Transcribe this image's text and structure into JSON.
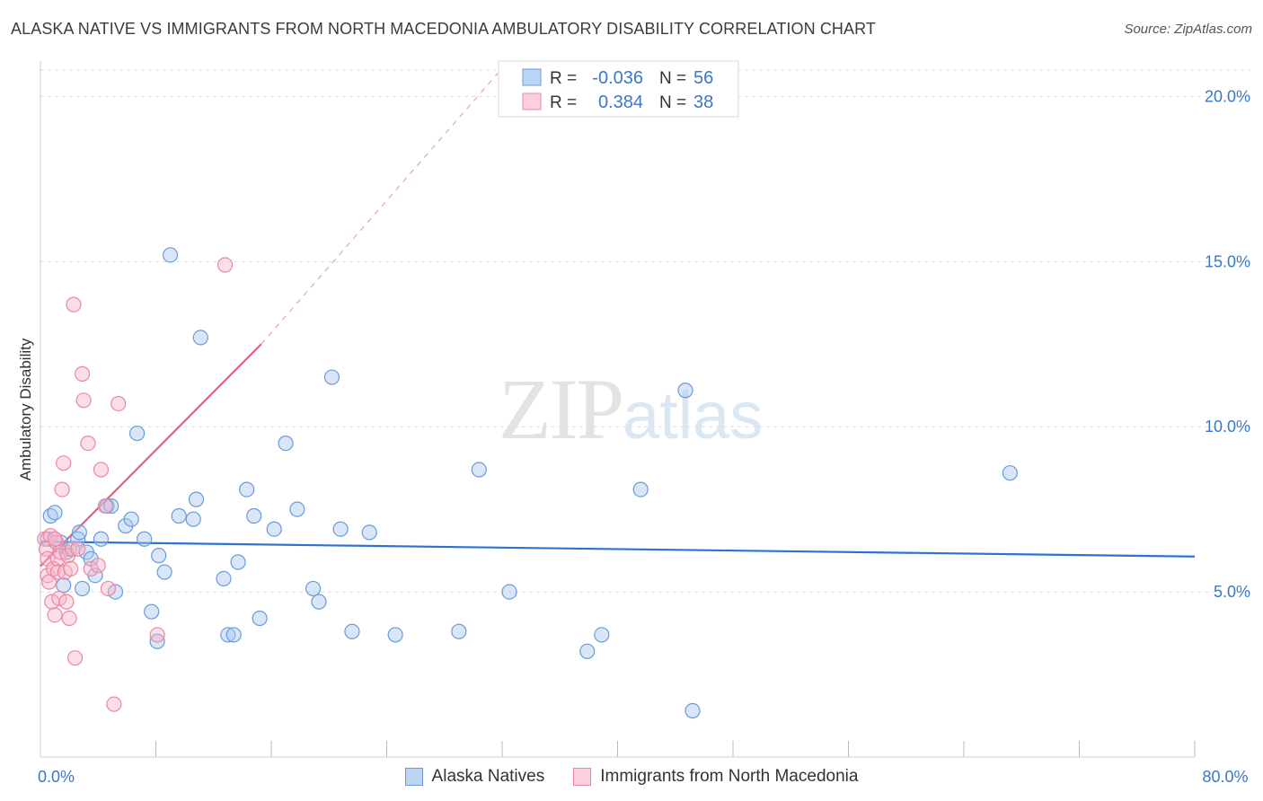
{
  "header": {
    "title": "ALASKA NATIVE VS IMMIGRANTS FROM NORTH MACEDONIA AMBULATORY DISABILITY CORRELATION CHART",
    "source": "Source: ZipAtlas.com"
  },
  "watermark": {
    "zip": "ZIP",
    "atlas": "atlas"
  },
  "legend": {
    "rows": [
      {
        "r_label": "R = ",
        "r_value": "-0.036",
        "n_label": "N = ",
        "n_value": "56"
      },
      {
        "r_label": "R = ",
        "r_value": " 0.384",
        "n_label": "N = ",
        "n_value": "38"
      }
    ]
  },
  "colors": {
    "blue_fill": "#a9c8f0",
    "blue_stroke": "#6a9ad8",
    "blue_line": "#2d72d2",
    "pink_fill": "#f7b6c8",
    "pink_stroke": "#e888a6",
    "pink_line": "#e0608a",
    "axis_text": "#3a78c9",
    "grid": "#dedede"
  },
  "chart_data": {
    "type": "scatter",
    "title": "ALASKA NATIVE VS IMMIGRANTS FROM NORTH MACEDONIA AMBULATORY DISABILITY CORRELATION CHART",
    "xlabel": "",
    "ylabel": "Ambulatory Disability",
    "xlim": [
      0,
      80
    ],
    "ylim": [
      0,
      20.8
    ],
    "x_tick_labels": [
      {
        "value": 0,
        "label": "0.0%"
      },
      {
        "value": 80,
        "label": "80.0%"
      }
    ],
    "x_minor_ticks": [
      8,
      16,
      24,
      32,
      40,
      48,
      56,
      64,
      72,
      80
    ],
    "y_ticks": [
      {
        "value": 5,
        "label": "5.0%"
      },
      {
        "value": 10,
        "label": "10.0%"
      },
      {
        "value": 15,
        "label": "15.0%"
      },
      {
        "value": 20,
        "label": "20.0%"
      }
    ],
    "series": [
      {
        "name": "Alaska Natives",
        "color_key": "blue",
        "points": [
          [
            0.5,
            6.6
          ],
          [
            0.7,
            7.3
          ],
          [
            1.0,
            7.4
          ],
          [
            1.4,
            6.5
          ],
          [
            1.8,
            6.2
          ],
          [
            1.6,
            5.2
          ],
          [
            2.0,
            6.3
          ],
          [
            2.6,
            6.6
          ],
          [
            2.7,
            6.8
          ],
          [
            2.9,
            5.1
          ],
          [
            3.2,
            6.2
          ],
          [
            3.5,
            6.0
          ],
          [
            3.8,
            5.5
          ],
          [
            4.2,
            6.6
          ],
          [
            4.6,
            7.6
          ],
          [
            4.9,
            7.6
          ],
          [
            5.2,
            5.0
          ],
          [
            5.9,
            7.0
          ],
          [
            6.3,
            7.2
          ],
          [
            6.7,
            9.8
          ],
          [
            7.2,
            6.6
          ],
          [
            7.7,
            4.4
          ],
          [
            8.1,
            3.5
          ],
          [
            8.2,
            6.1
          ],
          [
            8.6,
            5.6
          ],
          [
            9.0,
            15.2
          ],
          [
            9.6,
            7.3
          ],
          [
            10.6,
            7.2
          ],
          [
            10.8,
            7.8
          ],
          [
            11.1,
            12.7
          ],
          [
            12.7,
            5.4
          ],
          [
            13.0,
            3.7
          ],
          [
            13.4,
            3.7
          ],
          [
            13.7,
            5.9
          ],
          [
            14.3,
            8.1
          ],
          [
            14.8,
            7.3
          ],
          [
            15.2,
            4.2
          ],
          [
            16.2,
            6.9
          ],
          [
            17.0,
            9.5
          ],
          [
            17.8,
            7.5
          ],
          [
            18.9,
            5.1
          ],
          [
            19.3,
            4.7
          ],
          [
            20.2,
            11.5
          ],
          [
            20.8,
            6.9
          ],
          [
            21.6,
            3.8
          ],
          [
            22.8,
            6.8
          ],
          [
            24.6,
            3.7
          ],
          [
            29.0,
            3.8
          ],
          [
            30.4,
            8.7
          ],
          [
            32.5,
            5.0
          ],
          [
            37.9,
            3.2
          ],
          [
            38.9,
            3.7
          ],
          [
            41.6,
            8.1
          ],
          [
            44.7,
            11.1
          ],
          [
            45.2,
            1.4
          ],
          [
            67.2,
            8.6
          ]
        ],
        "trend": {
          "x": [
            0,
            80
          ],
          "y": [
            6.52,
            6.07
          ],
          "style": "solid"
        }
      },
      {
        "name": "Immigrants from North Macedonia",
        "color_key": "pink",
        "points": [
          [
            0.3,
            6.6
          ],
          [
            0.4,
            6.3
          ],
          [
            0.5,
            6.0
          ],
          [
            0.5,
            5.5
          ],
          [
            0.6,
            5.3
          ],
          [
            0.7,
            6.7
          ],
          [
            0.8,
            4.7
          ],
          [
            0.9,
            5.7
          ],
          [
            1.0,
            4.3
          ],
          [
            1.1,
            6.5
          ],
          [
            1.2,
            6.0
          ],
          [
            1.2,
            5.6
          ],
          [
            1.3,
            4.8
          ],
          [
            1.4,
            6.2
          ],
          [
            1.5,
            8.1
          ],
          [
            1.6,
            8.9
          ],
          [
            1.7,
            5.6
          ],
          [
            1.8,
            4.7
          ],
          [
            1.9,
            6.1
          ],
          [
            2.0,
            4.2
          ],
          [
            2.1,
            5.7
          ],
          [
            2.2,
            6.3
          ],
          [
            2.3,
            13.7
          ],
          [
            2.4,
            3.0
          ],
          [
            2.6,
            6.3
          ],
          [
            2.9,
            11.6
          ],
          [
            3.0,
            10.8
          ],
          [
            3.3,
            9.5
          ],
          [
            3.5,
            5.7
          ],
          [
            4.0,
            5.8
          ],
          [
            4.2,
            8.7
          ],
          [
            4.5,
            7.6
          ],
          [
            4.7,
            5.1
          ],
          [
            5.1,
            1.6
          ],
          [
            5.4,
            10.7
          ],
          [
            8.1,
            3.7
          ],
          [
            12.8,
            14.9
          ],
          [
            1.0,
            6.6
          ]
        ],
        "trend_solid": {
          "x": [
            0,
            15.3
          ],
          "y": [
            5.78,
            12.5
          ]
        },
        "trend_dashed": {
          "x": [
            15.3,
            31.7
          ],
          "y": [
            12.5,
            20.7
          ]
        }
      }
    ],
    "legend_position": "top-center",
    "grid": true
  },
  "bottom_legend": [
    {
      "label": "Alaska Natives",
      "color_key": "blue"
    },
    {
      "label": "Immigrants from North Macedonia",
      "color_key": "pink"
    }
  ]
}
